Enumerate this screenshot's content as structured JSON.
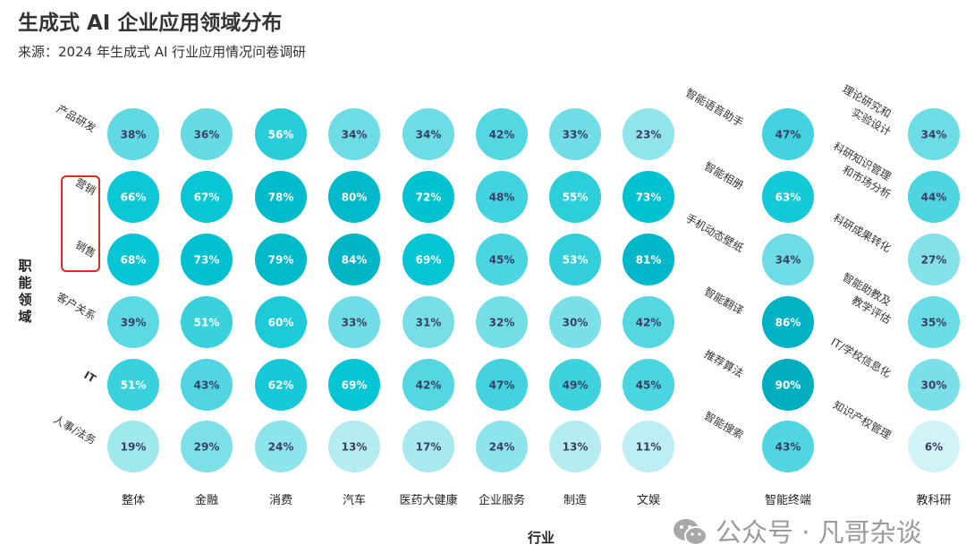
{
  "title": "生成式 AI 企业应用领域分布",
  "subtitle": "来源：2024 年生成式 AI 行业应用情况问卷调研",
  "watermark": "公众号 · 凡哥杂谈",
  "colors": {
    "low": "#eef9fb",
    "mid": "#00c4d3",
    "high": "#00aec0",
    "text_dark": "#3a3f63",
    "text_light": "#ffffff",
    "highlight_box": "#e8261c"
  },
  "chart_data": [
    {
      "type": "heatmap",
      "xlabel": "行业",
      "ylabel": "职能领域",
      "categories": [
        "整体",
        "金融",
        "消费",
        "汽车",
        "医药大健康",
        "企业服务",
        "制造",
        "文娱"
      ],
      "rows": [
        "产品研发",
        "营销",
        "销售",
        "客户关系",
        "IT",
        "人事/法务"
      ],
      "highlighted_rows": [
        "营销",
        "销售"
      ],
      "unit": "%",
      "values": [
        [
          38,
          36,
          56,
          34,
          34,
          42,
          33,
          23
        ],
        [
          66,
          67,
          78,
          80,
          72,
          48,
          55,
          73
        ],
        [
          68,
          73,
          79,
          84,
          69,
          45,
          53,
          81
        ],
        [
          39,
          51,
          60,
          33,
          31,
          32,
          30,
          42
        ],
        [
          51,
          43,
          62,
          69,
          42,
          47,
          49,
          45
        ],
        [
          19,
          29,
          24,
          13,
          17,
          24,
          13,
          11
        ]
      ]
    },
    {
      "type": "heatmap",
      "category": "智能终端",
      "rows": [
        "智能语音助手",
        "智能相册",
        "手机动态壁纸",
        "智能翻译",
        "推荐算法",
        "智能搜索"
      ],
      "unit": "%",
      "values": [
        47,
        63,
        34,
        86,
        90,
        43
      ]
    },
    {
      "type": "heatmap",
      "category": "教科研",
      "rows": [
        "理论研究和\n实验设计",
        "科研知识管理\n和市场分析",
        "科研成果转化",
        "智能助教及\n教学评估",
        "IT/学校信息化",
        "知识产权管理"
      ],
      "unit": "%",
      "values": [
        34,
        44,
        27,
        35,
        30,
        6
      ]
    }
  ]
}
